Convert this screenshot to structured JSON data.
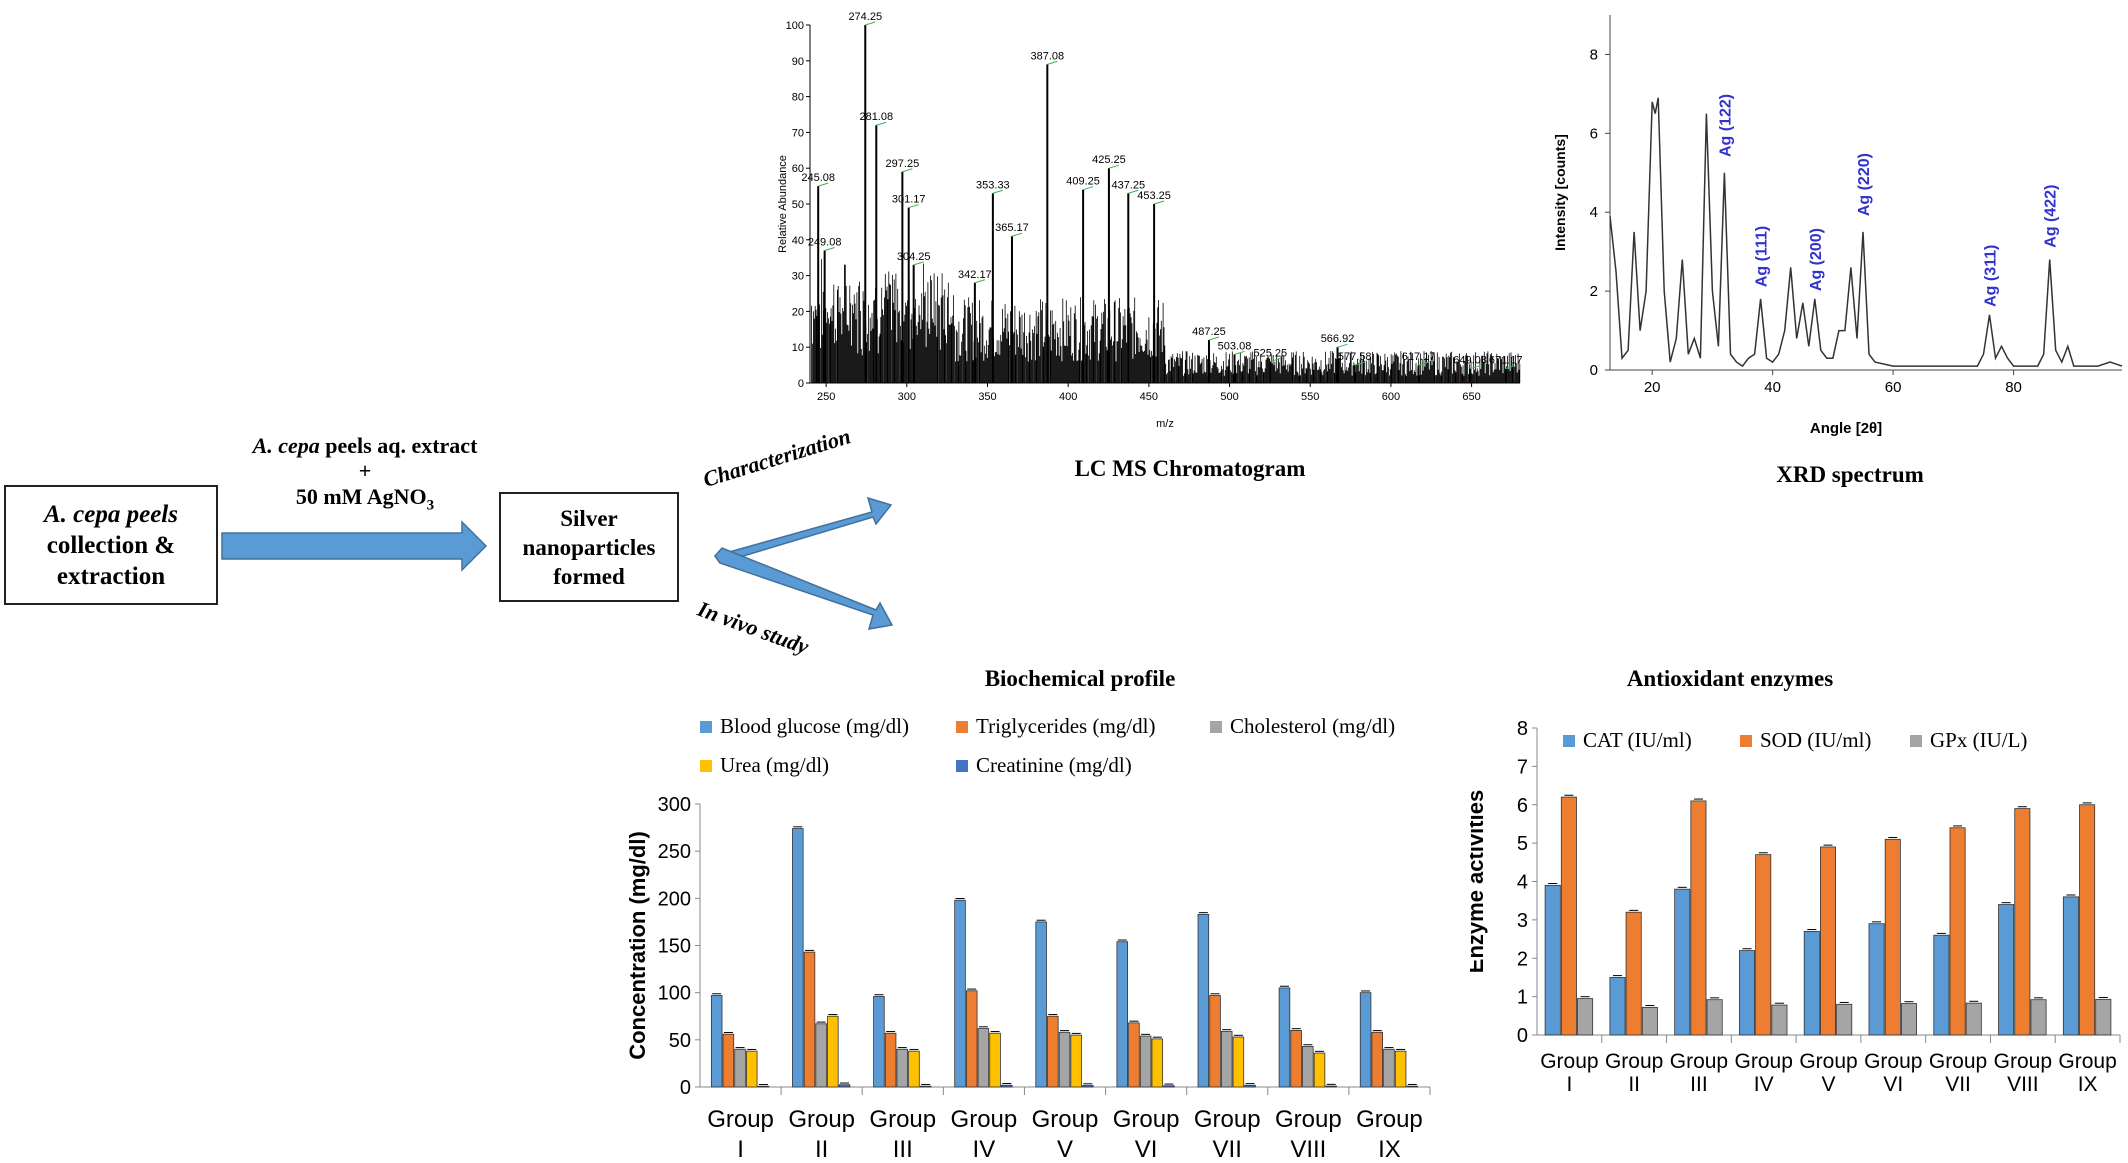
{
  "flow": {
    "step1_italic": "A. cepa peels",
    "step1_line2": "collection &",
    "step1_line3": "extraction",
    "reagent_italic": "A. cepa",
    "reagent_rest": " peels aq. extract",
    "reagent_plus": "+",
    "reagent_line3": "50 mM AgNO",
    "reagent_sub": "3",
    "step2_line1": "Silver",
    "step2_line2": "nanoparticles",
    "step2_line3": "formed",
    "branch_up": "Characterization",
    "branch_down": "In vivo study"
  },
  "colors": {
    "arrow": "#5b9bd5",
    "arrow_border": "#41719c",
    "blue": "#5b9bd5",
    "orange": "#ed7d31",
    "gray": "#a5a5a5",
    "yellow": "#ffc000",
    "darkblue": "#4472c4",
    "xrd_label": "#3333cc"
  },
  "chart_data": [
    {
      "type": "line",
      "name": "lcms",
      "title": "LC MS Chromatogram",
      "xlabel": "m/z",
      "ylabel": "Relative Abundance",
      "xlim": [
        240,
        680
      ],
      "ylim": [
        0,
        100
      ],
      "xticks": [
        250,
        300,
        350,
        400,
        450,
        500,
        550,
        600,
        650
      ],
      "yticks": [
        0,
        10,
        20,
        30,
        40,
        50,
        60,
        70,
        80,
        90,
        100
      ],
      "peaks": [
        {
          "mz": 245.08,
          "y": 55,
          "label": "245.08"
        },
        {
          "mz": 249.08,
          "y": 37,
          "label": "249.08"
        },
        {
          "mz": 274.25,
          "y": 100,
          "label": "274.25"
        },
        {
          "mz": 281.08,
          "y": 72,
          "label": "281.08"
        },
        {
          "mz": 297.25,
          "y": 59,
          "label": "297.25"
        },
        {
          "mz": 301.17,
          "y": 49,
          "label": "301.17"
        },
        {
          "mz": 304.25,
          "y": 33,
          "label": "304.25"
        },
        {
          "mz": 342.17,
          "y": 28,
          "label": "342.17"
        },
        {
          "mz": 353.33,
          "y": 53,
          "label": "353.33"
        },
        {
          "mz": 365.17,
          "y": 41,
          "label": "365.17"
        },
        {
          "mz": 387.08,
          "y": 89,
          "label": "387.08"
        },
        {
          "mz": 409.25,
          "y": 54,
          "label": "409.25"
        },
        {
          "mz": 425.25,
          "y": 60,
          "label": "425.25"
        },
        {
          "mz": 437.25,
          "y": 53,
          "label": "437.25"
        },
        {
          "mz": 453.25,
          "y": 50,
          "label": "453.25"
        },
        {
          "mz": 487.25,
          "y": 12,
          "label": "487.25"
        },
        {
          "mz": 503.08,
          "y": 8,
          "label": "503.08"
        },
        {
          "mz": 525.25,
          "y": 6,
          "label": "525.25"
        },
        {
          "mz": 566.92,
          "y": 10,
          "label": "566.92"
        },
        {
          "mz": 577.58,
          "y": 5,
          "label": "577.58"
        },
        {
          "mz": 617.17,
          "y": 5,
          "label": "617.17"
        },
        {
          "mz": 649.08,
          "y": 4,
          "label": "649.08"
        },
        {
          "mz": 671.17,
          "y": 4,
          "label": "671.17"
        }
      ]
    },
    {
      "type": "line",
      "name": "xrd",
      "title": "XRD spectrum",
      "xlabel": "Angle [2θ]",
      "ylabel": "Intensity [counts]",
      "xlim": [
        13,
        98
      ],
      "ylim": [
        0,
        9
      ],
      "xticks": [
        20,
        40,
        60,
        80
      ],
      "yticks": [
        0,
        2,
        4,
        6,
        8
      ],
      "profile": [
        [
          13,
          3.9
        ],
        [
          14,
          2.5
        ],
        [
          15,
          0.3
        ],
        [
          16,
          0.5
        ],
        [
          17,
          3.5
        ],
        [
          18,
          1.0
        ],
        [
          19,
          2.0
        ],
        [
          20,
          6.8
        ],
        [
          20.5,
          6.5
        ],
        [
          21,
          6.9
        ],
        [
          22,
          2.0
        ],
        [
          23,
          0.2
        ],
        [
          24,
          0.8
        ],
        [
          25,
          2.8
        ],
        [
          26,
          0.4
        ],
        [
          27,
          0.8
        ],
        [
          28,
          0.3
        ],
        [
          29,
          6.5
        ],
        [
          30,
          2.0
        ],
        [
          31,
          0.6
        ],
        [
          32,
          5.0
        ],
        [
          33,
          0.4
        ],
        [
          34,
          0.2
        ],
        [
          35,
          0.1
        ],
        [
          36,
          0.3
        ],
        [
          37,
          0.4
        ],
        [
          38,
          1.8
        ],
        [
          39,
          0.3
        ],
        [
          40,
          0.2
        ],
        [
          41,
          0.4
        ],
        [
          42,
          1.0
        ],
        [
          43,
          2.6
        ],
        [
          44,
          0.8
        ],
        [
          45,
          1.7
        ],
        [
          46,
          0.6
        ],
        [
          47,
          1.8
        ],
        [
          48,
          0.5
        ],
        [
          49,
          0.3
        ],
        [
          50,
          0.3
        ],
        [
          51,
          1.0
        ],
        [
          52,
          1.0
        ],
        [
          53,
          2.6
        ],
        [
          54,
          0.8
        ],
        [
          55,
          3.5
        ],
        [
          56,
          0.4
        ],
        [
          57,
          0.2
        ],
        [
          60,
          0.1
        ],
        [
          65,
          0.1
        ],
        [
          70,
          0.1
        ],
        [
          74,
          0.1
        ],
        [
          75,
          0.4
        ],
        [
          76,
          1.4
        ],
        [
          77,
          0.3
        ],
        [
          78,
          0.6
        ],
        [
          79,
          0.3
        ],
        [
          80,
          0.1
        ],
        [
          84,
          0.1
        ],
        [
          85,
          0.4
        ],
        [
          86,
          2.8
        ],
        [
          87,
          0.5
        ],
        [
          88,
          0.2
        ],
        [
          89,
          0.6
        ],
        [
          90,
          0.1
        ],
        [
          94,
          0.1
        ],
        [
          96,
          0.2
        ],
        [
          98,
          0.1
        ]
      ],
      "annotations": [
        {
          "x": 32,
          "y": 5.4,
          "label": "Ag (122)"
        },
        {
          "x": 38,
          "y": 2.1,
          "label": "Ag (111)"
        },
        {
          "x": 47,
          "y": 2.0,
          "label": "Ag (200)"
        },
        {
          "x": 55,
          "y": 3.9,
          "label": "Ag (220)"
        },
        {
          "x": 76,
          "y": 1.6,
          "label": "Ag (311)"
        },
        {
          "x": 86,
          "y": 3.1,
          "label": "Ag (422)"
        }
      ]
    },
    {
      "type": "bar",
      "name": "biochem",
      "title": "Biochemical profile",
      "xlabel": "",
      "ylabel": "Concentration (mg/dl)",
      "ylim": [
        0,
        300
      ],
      "yticks": [
        0,
        50,
        100,
        150,
        200,
        250,
        300
      ],
      "categories": [
        [
          "Group",
          "I"
        ],
        [
          "Group",
          "II"
        ],
        [
          "Group",
          "III"
        ],
        [
          "Group",
          "IV"
        ],
        [
          "Group",
          "V"
        ],
        [
          "Group",
          "VI"
        ],
        [
          "Group",
          "VII"
        ],
        [
          "Group",
          "VIII"
        ],
        [
          "Group",
          "IX"
        ]
      ],
      "series": [
        {
          "name": "Blood glucose (mg/dl)",
          "values": [
            97,
            274,
            96,
            198,
            175,
            154,
            183,
            105,
            100
          ],
          "color": "#5b9bd5"
        },
        {
          "name": "Triglycerides (mg/dl)",
          "values": [
            56,
            143,
            57,
            102,
            75,
            68,
            97,
            60,
            58
          ],
          "color": "#ed7d31"
        },
        {
          "name": "Cholesterol (mg/dl)",
          "values": [
            40,
            67,
            40,
            62,
            58,
            54,
            59,
            43,
            40
          ],
          "color": "#a5a5a5"
        },
        {
          "name": "Urea (mg/dl)",
          "values": [
            38,
            75,
            38,
            57,
            55,
            51,
            53,
            36,
            38
          ],
          "color": "#ffc000"
        },
        {
          "name": "Creatinine (mg/dl)",
          "values": [
            0.8,
            2.4,
            0.9,
            1.9,
            1.6,
            1.3,
            1.8,
            1.0,
            0.9
          ],
          "color": "#4472c4"
        }
      ]
    },
    {
      "type": "bar",
      "name": "antiox",
      "title": "Antioxidant enzymes",
      "xlabel": "",
      "ylabel": "Enzyme activities",
      "ylim": [
        0,
        8
      ],
      "yticks": [
        0,
        1,
        2,
        3,
        4,
        5,
        6,
        7,
        8
      ],
      "categories": [
        [
          "Group",
          "I"
        ],
        [
          "Group",
          "II"
        ],
        [
          "Group",
          "III"
        ],
        [
          "Group",
          "IV"
        ],
        [
          "Group",
          "V"
        ],
        [
          "Group",
          "VI"
        ],
        [
          "Group",
          "VII"
        ],
        [
          "Group",
          "VIII"
        ],
        [
          "Group",
          "IX"
        ]
      ],
      "series": [
        {
          "name": "CAT (IU/ml)",
          "values": [
            3.9,
            1.5,
            3.8,
            2.2,
            2.7,
            2.9,
            2.6,
            3.4,
            3.6
          ],
          "color": "#5b9bd5"
        },
        {
          "name": "SOD (IU/ml)",
          "values": [
            6.2,
            3.2,
            6.1,
            4.7,
            4.9,
            5.1,
            5.4,
            5.9,
            6.0
          ],
          "color": "#ed7d31"
        },
        {
          "name": "GPx (IU/L)",
          "values": [
            0.95,
            0.72,
            0.92,
            0.78,
            0.8,
            0.82,
            0.83,
            0.92,
            0.93
          ],
          "color": "#a5a5a5"
        }
      ]
    }
  ]
}
